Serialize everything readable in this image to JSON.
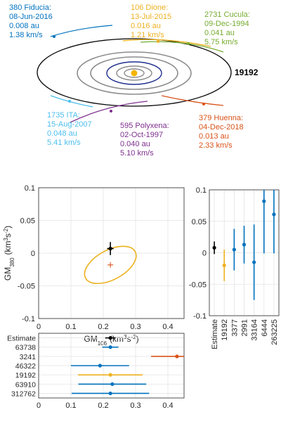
{
  "colors": {
    "blue": "#0072BD",
    "orange": "#D95319",
    "yellow": "#EDB120",
    "purple": "#7E2F8E",
    "green": "#77AC30",
    "cyan": "#4DBEEE",
    "black": "#000000",
    "gray": "#8c8c8c",
    "sun": "#f5b400"
  },
  "orbit_diagram": {
    "target_label": "19192",
    "encounters": [
      {
        "key": "fiducia",
        "color": "#0072BD",
        "lines": [
          "380 Fiducia:",
          "08-Jun-2016",
          "0.008 au",
          "1.38 km/s"
        ]
      },
      {
        "key": "dione",
        "color": "#EDB120",
        "lines": [
          "106 Dione:",
          "13-Jul-2015",
          "0.016 au",
          "1.21 km/s"
        ]
      },
      {
        "key": "cucula",
        "color": "#77AC30",
        "lines": [
          "2731 Cucula:",
          "09-Dec-1994",
          "0.041 au",
          "5.75 km/s"
        ]
      },
      {
        "key": "huenna",
        "color": "#D95319",
        "lines": [
          "379 Huenna:",
          "04-Dec-2018",
          "0.013 au",
          "2.33 km/s"
        ]
      },
      {
        "key": "ita",
        "color": "#4DBEEE",
        "lines": [
          "1735 ITA:",
          "15-Aug-2007",
          "0.048 au",
          "5.41 km/s"
        ]
      },
      {
        "key": "polyxena",
        "color": "#7E2F8E",
        "lines": [
          "595 Polyxena:",
          "02-Oct-1997",
          "0.040 au",
          "5.10 km/s"
        ]
      }
    ]
  },
  "chart_data": [
    {
      "type": "scatter",
      "name": "covariance-plot",
      "xlabel_base": "GM",
      "xlabel_sub": "106",
      "xlabel_unit_a": "(km",
      "xlabel_unit_sup_a": "3",
      "xlabel_unit_b": "s",
      "xlabel_unit_sup_b": "-2",
      "xlabel_unit_c": ")",
      "ylabel_base": "GM",
      "ylabel_sub": "380",
      "ylabel_unit_a": "(km",
      "ylabel_unit_sup_a": "3",
      "ylabel_unit_b": "s",
      "ylabel_unit_sup_b": "-2",
      "ylabel_unit_c": ")",
      "xlim": [
        0,
        0.45
      ],
      "ylim": [
        -0.1,
        0.1
      ],
      "xticks": [
        0,
        0.1,
        0.2,
        0.3,
        0.4
      ],
      "xtick_labels": [
        "0",
        "0.1",
        "0.2",
        "0.3",
        "0.4"
      ],
      "yticks": [
        -0.1,
        -0.05,
        0,
        0.05,
        0.1
      ],
      "ytick_labels": [
        "-0.1",
        "-0.05",
        "0",
        "0.05",
        "0.1"
      ],
      "grid": true,
      "estimate": {
        "x": 0.222,
        "y": 0.007,
        "xerr": 0.01,
        "yerr": 0.01
      },
      "prior": {
        "x": 0.222,
        "y": -0.018
      },
      "ellipse": {
        "cx": 0.222,
        "cy": -0.018,
        "semi_major": 0.1,
        "semi_minor": 0.011,
        "color": "#EDB120"
      }
    },
    {
      "type": "scatter",
      "name": "gm380-estimates",
      "ylim": [
        -0.1,
        0.1
      ],
      "yticks": [
        -0.1,
        -0.05,
        0,
        0.05,
        0.1
      ],
      "ytick_labels": [
        "-0.1",
        "-0.05",
        "0",
        "0.05",
        "0.1"
      ],
      "categories": [
        "Estimate",
        "19192",
        "3377",
        "2991",
        "33164",
        "6444",
        "263225"
      ],
      "values": [
        0.008,
        -0.02,
        0.005,
        0.013,
        -0.015,
        0.082,
        0.061
      ],
      "errors": [
        0.01,
        0.025,
        0.033,
        0.03,
        0.06,
        0.083,
        0.062
      ],
      "colors": [
        "#000000",
        "#EDB120",
        "#0072BD",
        "#0072BD",
        "#0072BD",
        "#0072BD",
        "#0072BD"
      ],
      "grid": true
    },
    {
      "type": "scatter",
      "name": "gm106-estimates",
      "xlim": [
        0,
        0.45
      ],
      "xticks": [
        0,
        0.1,
        0.2,
        0.3,
        0.4
      ],
      "xtick_labels": [
        "0",
        "0.1",
        "0.2",
        "0.3",
        "0.4"
      ],
      "categories": [
        "Estimate",
        "63738",
        "3241",
        "46322",
        "19192",
        "63910",
        "312762"
      ],
      "values": [
        0.222,
        0.222,
        0.428,
        0.19,
        0.222,
        0.228,
        0.222
      ],
      "errors": [
        0.016,
        0.025,
        0.08,
        0.09,
        0.1,
        0.105,
        0.12
      ],
      "colors": [
        "#000000",
        "#0072BD",
        "#D95319",
        "#0072BD",
        "#EDB120",
        "#0072BD",
        "#0072BD"
      ],
      "grid": true
    }
  ]
}
